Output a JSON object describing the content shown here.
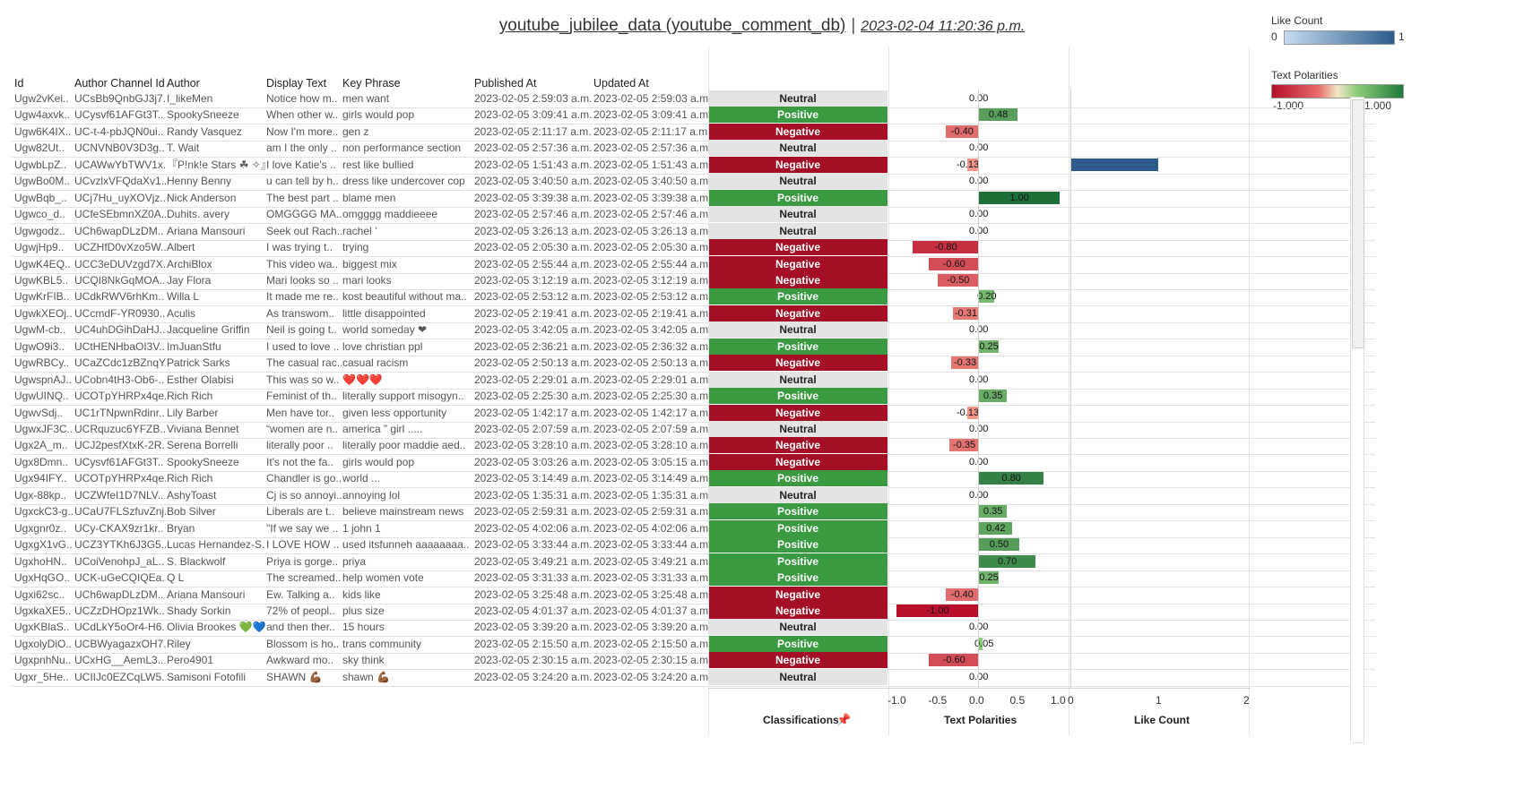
{
  "title": {
    "main": "youtube_jubilee_data (youtube_comment_db)",
    "separator": "|",
    "timestamp": "2023-02-04 11:20:36 p.m."
  },
  "legend_like": {
    "title": "Like Count",
    "min": "0",
    "max": "1",
    "color_low": "#c6dcef",
    "color_high": "#2c5b8c"
  },
  "legend_pol": {
    "title": "Text Polarities",
    "min": "-1.000",
    "max": "1.000",
    "color_neg": "#b3102a",
    "color_pos": "#1e7a38"
  },
  "columns": [
    "Id",
    "Author Channel Id",
    "Author",
    "Display Text",
    "Key Phrase",
    "Published At",
    "Updated At"
  ],
  "axes": {
    "classifications_title": "Classifications",
    "polarity_title": "Text Polarities",
    "like_title": "Like Count",
    "polarity_ticks": [
      "-1.0",
      "-0.5",
      "0.0",
      "0.5",
      "1.0"
    ],
    "like_ticks": [
      "0",
      "1",
      "2"
    ],
    "pin_icon": "pin-icon"
  },
  "colors": {
    "neutral": "#e4e4e4",
    "positive": "#3a9a40",
    "negative": "#a50f26",
    "like_bar": "#2c5b8c"
  },
  "rows": [
    {
      "id": "Ugw2vKei..",
      "channel": "UCsBb9QnbGJ3j7..",
      "author": "I_likeMen",
      "text": "Notice how m..",
      "phrase": "men want",
      "pub": "2023-02-05 2:59:03 a.m.",
      "upd": "2023-02-05 2:59:03 a.m.",
      "cls": "Neutral",
      "pol": 0.0,
      "pol_label": "0.00",
      "likes": 0
    },
    {
      "id": "Ugw4axvk..",
      "channel": "UCysvf61AFGt3T..",
      "author": "SpookySneeze",
      "text": "When other w..",
      "phrase": "girls would pop",
      "pub": "2023-02-05 3:09:41 a.m.",
      "upd": "2023-02-05 3:09:41 a.m.",
      "cls": "Positive",
      "pol": 0.48,
      "pol_label": "0.48",
      "likes": 0
    },
    {
      "id": "Ugw6K4IX..",
      "channel": "UC-t-4-pbJQN0ui..",
      "author": "Randy Vasquez",
      "text": "Now I'm more..",
      "phrase": "gen z",
      "pub": "2023-02-05 2:11:17 a.m.",
      "upd": "2023-02-05 2:11:17 a.m.",
      "cls": "Negative",
      "pol": -0.4,
      "pol_label": "-0.40",
      "likes": 0
    },
    {
      "id": "Ugw82Ut..",
      "channel": "UCNVNB0V3D3g..",
      "author": "T. Wait",
      "text": "am I the only ..",
      "phrase": "non performance section",
      "pub": "2023-02-05 2:57:36 a.m.",
      "upd": "2023-02-05 2:57:36 a.m.",
      "cls": "Neutral",
      "pol": 0.0,
      "pol_label": "0.00",
      "likes": 0
    },
    {
      "id": "UgwbLpZ..",
      "channel": "UCAWwYbTWV1x..",
      "author": "『P!nk!e Stars ☘ ✧』",
      "text": "I love Katie's ..",
      "phrase": "rest like bullied",
      "pub": "2023-02-05 1:51:43 a.m.",
      "upd": "2023-02-05 1:51:43 a.m.",
      "cls": "Negative",
      "pol": -0.13,
      "pol_label": "-0.13",
      "likes": 1
    },
    {
      "id": "UgwBo0M..",
      "channel": "UCvzlxVFQdaXv1..",
      "author": "Henny Benny",
      "text": "u can tell by h..",
      "phrase": "dress like undercover cop",
      "pub": "2023-02-05 3:40:50 a.m.",
      "upd": "2023-02-05 3:40:50 a.m.",
      "cls": "Neutral",
      "pol": 0.0,
      "pol_label": "0.00",
      "likes": 0
    },
    {
      "id": "UgwBqb_..",
      "channel": "UCj7Hu_uyXOVjz..",
      "author": "Nick Anderson",
      "text": "The best part ..",
      "phrase": "blame men",
      "pub": "2023-02-05 3:39:38 a.m.",
      "upd": "2023-02-05 3:39:38 a.m.",
      "cls": "Positive",
      "pol": 1.0,
      "pol_label": "1.00",
      "likes": 0
    },
    {
      "id": "Ugwco_d..",
      "channel": "UCfeSEbmnXZ0A..",
      "author": "Duhits. avery",
      "text": "OMGGGG MA..",
      "phrase": "omgggg maddieeee",
      "pub": "2023-02-05 2:57:46 a.m.",
      "upd": "2023-02-05 2:57:46 a.m.",
      "cls": "Neutral",
      "pol": 0.0,
      "pol_label": "0.00",
      "likes": 0
    },
    {
      "id": "Ugwgodz..",
      "channel": "UCh6wapDLzDM..",
      "author": "Ariana Mansouri",
      "text": "Seek out Rach..",
      "phrase": "rachel ’",
      "pub": "2023-02-05 3:26:13 a.m.",
      "upd": "2023-02-05 3:26:13 a.m.",
      "cls": "Neutral",
      "pol": 0.0,
      "pol_label": "0.00",
      "likes": 0
    },
    {
      "id": "UgwjHp9..",
      "channel": "UCZHfD0vXzo5W..",
      "author": "Albert",
      "text": "I was trying t..",
      "phrase": "trying",
      "pub": "2023-02-05 2:05:30 a.m.",
      "upd": "2023-02-05 2:05:30 a.m.",
      "cls": "Negative",
      "pol": -0.8,
      "pol_label": "-0.80",
      "likes": 0
    },
    {
      "id": "UgwK4EQ..",
      "channel": "UCC3eDUVzgd7X..",
      "author": "ArchiBlox",
      "text": "This video wa..",
      "phrase": "biggest mix",
      "pub": "2023-02-05 2:55:44 a.m.",
      "upd": "2023-02-05 2:55:44 a.m.",
      "cls": "Negative",
      "pol": -0.6,
      "pol_label": "-0.60",
      "likes": 0
    },
    {
      "id": "UgwKBL5..",
      "channel": "UCQI8NkGqMOA..",
      "author": "Jay Flora",
      "text": "Mari looks so ..",
      "phrase": "mari looks",
      "pub": "2023-02-05 3:12:19 a.m.",
      "upd": "2023-02-05 3:12:19 a.m.",
      "cls": "Negative",
      "pol": -0.5,
      "pol_label": "-0.50",
      "likes": 0
    },
    {
      "id": "UgwKrFIB..",
      "channel": "UCdkRWV6rhKm..",
      "author": "Willa L",
      "text": "It made me re..",
      "phrase": "kost beautiful without ma..",
      "pub": "2023-02-05 2:53:12 a.m.",
      "upd": "2023-02-05 2:53:12 a.m.",
      "cls": "Positive",
      "pol": 0.2,
      "pol_label": "0.20",
      "likes": 0
    },
    {
      "id": "UgwkXEOj..",
      "channel": "UCcmdF-YR0930..",
      "author": "Aculis",
      "text": "As transwom..",
      "phrase": "little disappointed",
      "pub": "2023-02-05 2:19:41 a.m.",
      "upd": "2023-02-05 2:19:41 a.m.",
      "cls": "Negative",
      "pol": -0.31,
      "pol_label": "-0.31",
      "likes": 0
    },
    {
      "id": "UgwM-cb..",
      "channel": "UC4uhDGihDaHJ..",
      "author": "Jacqueline Griffin",
      "text": "Neil is going t..",
      "phrase": "world someday ❤",
      "pub": "2023-02-05 3:42:05 a.m.",
      "upd": "2023-02-05 3:42:05 a.m.",
      "cls": "Neutral",
      "pol": 0.0,
      "pol_label": "0.00",
      "likes": 0
    },
    {
      "id": "UgwO9i3..",
      "channel": "UCtHENHbaOI3V..",
      "author": "ImJuanStfu",
      "text": "I used to love ..",
      "phrase": "love christian ppl",
      "pub": "2023-02-05 2:36:21 a.m.",
      "upd": "2023-02-05 2:36:32 a.m.",
      "cls": "Positive",
      "pol": 0.25,
      "pol_label": "0.25",
      "likes": 0
    },
    {
      "id": "UgwRBCy..",
      "channel": "UCaZCdc1zBZnqY..",
      "author": "Patrick Sarks",
      "text": "The casual rac..",
      "phrase": "casual racism",
      "pub": "2023-02-05 2:50:13 a.m.",
      "upd": "2023-02-05 2:50:13 a.m.",
      "cls": "Negative",
      "pol": -0.33,
      "pol_label": "-0.33",
      "likes": 0
    },
    {
      "id": "UgwspnAJ..",
      "channel": "UCobn4tH3-Ob6-..",
      "author": "Esther Olabisi",
      "text": "This was so w..",
      "phrase": "❤️❤️❤️",
      "pub": "2023-02-05 2:29:01 a.m.",
      "upd": "2023-02-05 2:29:01 a.m.",
      "cls": "Neutral",
      "pol": 0.0,
      "pol_label": "0.00",
      "likes": 0
    },
    {
      "id": "UgwUINQ..",
      "channel": "UCOTpYHRPx4qe..",
      "author": "Rich Rich",
      "text": "Feminist of th..",
      "phrase": "literally support misogyn..",
      "pub": "2023-02-05 2:25:30 a.m.",
      "upd": "2023-02-05 2:25:30 a.m.",
      "cls": "Positive",
      "pol": 0.35,
      "pol_label": "0.35",
      "likes": 0
    },
    {
      "id": "UgwvSdj..",
      "channel": "UC1rTNpwnRdinr..",
      "author": "Lily Barber",
      "text": "Men have tor..",
      "phrase": "given less opportunity",
      "pub": "2023-02-05 1:42:17 a.m.",
      "upd": "2023-02-05 1:42:17 a.m.",
      "cls": "Negative",
      "pol": -0.13,
      "pol_label": "-0.13",
      "likes": 0
    },
    {
      "id": "UgwxJF3C..",
      "channel": "UCRquzuc6YFZB..",
      "author": "Viviana Bennet",
      "text": "“women are n..",
      "phrase": "america ” girl .....",
      "pub": "2023-02-05 2:07:59 a.m.",
      "upd": "2023-02-05 2:07:59 a.m.",
      "cls": "Neutral",
      "pol": 0.0,
      "pol_label": "0.00",
      "likes": 0
    },
    {
      "id": "Ugx2A_m..",
      "channel": "UCJ2pesfXtxK-2R..",
      "author": "Serena Borrelli",
      "text": "literally poor ..",
      "phrase": "literally poor maddie aed..",
      "pub": "2023-02-05 3:28:10 a.m.",
      "upd": "2023-02-05 3:28:10 a.m.",
      "cls": "Negative",
      "pol": -0.35,
      "pol_label": "-0.35",
      "likes": 0
    },
    {
      "id": "Ugx8Dmn..",
      "channel": "UCysvf61AFGt3T..",
      "author": "SpookySneeze",
      "text": "It's not the fa..",
      "phrase": "girls would pop",
      "pub": "2023-02-05 3:03:26 a.m.",
      "upd": "2023-02-05 3:05:15 a.m.",
      "cls": "Negative",
      "pol": 0.0,
      "pol_label": "0.00",
      "likes": 0
    },
    {
      "id": "Ugx94IFY..",
      "channel": "UCOTpYHRPx4qe..",
      "author": "Rich Rich",
      "text": "Chandler is go..",
      "phrase": "world ...",
      "pub": "2023-02-05 3:14:49 a.m.",
      "upd": "2023-02-05 3:14:49 a.m.",
      "cls": "Positive",
      "pol": 0.8,
      "pol_label": "0.80",
      "likes": 0
    },
    {
      "id": "Ugx-88kp..",
      "channel": "UCZWfeI1D7NLV..",
      "author": "AshyToast",
      "text": "Cj is so annoyi..",
      "phrase": "annoying lol",
      "pub": "2023-02-05 1:35:31 a.m.",
      "upd": "2023-02-05 1:35:31 a.m.",
      "cls": "Neutral",
      "pol": 0.0,
      "pol_label": "0.00",
      "likes": 0
    },
    {
      "id": "UgxckC3-g..",
      "channel": "UCaU7FLSzfuvZnj..",
      "author": "Bob Silver",
      "text": "Liberals are t..",
      "phrase": "believe mainstream news",
      "pub": "2023-02-05 2:59:31 a.m.",
      "upd": "2023-02-05 2:59:31 a.m.",
      "cls": "Positive",
      "pol": 0.35,
      "pol_label": "0.35",
      "likes": 0
    },
    {
      "id": "Ugxgnr0z..",
      "channel": "UCy-CKAX9zr1kr..",
      "author": "Bryan",
      "text": "\"If we say we ..",
      "phrase": "1 john 1",
      "pub": "2023-02-05 4:02:06 a.m.",
      "upd": "2023-02-05 4:02:06 a.m.",
      "cls": "Positive",
      "pol": 0.42,
      "pol_label": "0.42",
      "likes": 0
    },
    {
      "id": "UgxgX1vG..",
      "channel": "UCZ3YTKh6J3G5..",
      "author": "Lucas Hernandez-S..",
      "text": "I LOVE HOW ..",
      "phrase": "used itsfunneh aaaaaaaa..",
      "pub": "2023-02-05 3:33:44 a.m.",
      "upd": "2023-02-05 3:33:44 a.m.",
      "cls": "Positive",
      "pol": 0.5,
      "pol_label": "0.50",
      "likes": 0
    },
    {
      "id": "UgxhoHN..",
      "channel": "UCoiVenohpJ_aL..",
      "author": "S. Blackwolf",
      "text": "Priya is gorge..",
      "phrase": "priya",
      "pub": "2023-02-05 3:49:21 a.m.",
      "upd": "2023-02-05 3:49:21 a.m.",
      "cls": "Positive",
      "pol": 0.7,
      "pol_label": "0.70",
      "likes": 0
    },
    {
      "id": "UgxHqGO..",
      "channel": "UCK-uGeCQIQEa..",
      "author": "Q L",
      "text": "The screamed..",
      "phrase": "help women vote",
      "pub": "2023-02-05 3:31:33 a.m.",
      "upd": "2023-02-05 3:31:33 a.m.",
      "cls": "Positive",
      "pol": 0.25,
      "pol_label": "0.25",
      "likes": 0
    },
    {
      "id": "Ugxi62sc..",
      "channel": "UCh6wapDLzDM..",
      "author": "Ariana Mansouri",
      "text": "Ew. Talking a..",
      "phrase": "kids like",
      "pub": "2023-02-05 3:25:48 a.m.",
      "upd": "2023-02-05 3:25:48 a.m.",
      "cls": "Negative",
      "pol": -0.4,
      "pol_label": "-0.40",
      "likes": 0
    },
    {
      "id": "UgxkaXE5..",
      "channel": "UCZzDHOpz1Wk..",
      "author": "Shady Sorkin",
      "text": "72% of peopl..",
      "phrase": "plus size",
      "pub": "2023-02-05 4:01:37 a.m.",
      "upd": "2023-02-05 4:01:37 a.m.",
      "cls": "Negative",
      "pol": -1.0,
      "pol_label": "-1.00",
      "likes": 0
    },
    {
      "id": "UgxKBlaS..",
      "channel": "UCdLkY5oOr4-H6..",
      "author": "Olivia Brookes 💚💙",
      "text": "and then ther..",
      "phrase": "15 hours",
      "pub": "2023-02-05 3:39:20 a.m.",
      "upd": "2023-02-05 3:39:20 a.m.",
      "cls": "Neutral",
      "pol": 0.0,
      "pol_label": "0.00",
      "likes": 0
    },
    {
      "id": "UgxolyDiO..",
      "channel": "UCBWyagazxOH7..",
      "author": "Riley",
      "text": "Blossom is ho..",
      "phrase": "trans community",
      "pub": "2023-02-05 2:15:50 a.m.",
      "upd": "2023-02-05 2:15:50 a.m.",
      "cls": "Positive",
      "pol": 0.05,
      "pol_label": "0.05",
      "likes": 0
    },
    {
      "id": "UgxpnhNu..",
      "channel": "UCxHG__AemL3..",
      "author": "Pero4901",
      "text": "Awkward mo..",
      "phrase": "sky think",
      "pub": "2023-02-05 2:30:15 a.m.",
      "upd": "2023-02-05 2:30:15 a.m.",
      "cls": "Negative",
      "pol": -0.6,
      "pol_label": "-0.60",
      "likes": 0
    },
    {
      "id": "Ugxr_5He..",
      "channel": "UCIIJc0EZCqLW5..",
      "author": "Samisoni Fotofili",
      "text": "SHAWN 💪🏾",
      "phrase": "shawn 💪🏾",
      "pub": "2023-02-05 3:24:20 a.m.",
      "upd": "2023-02-05 3:24:20 a.m.",
      "cls": "Neutral",
      "pol": 0.0,
      "pol_label": "0.00",
      "likes": 0
    }
  ]
}
